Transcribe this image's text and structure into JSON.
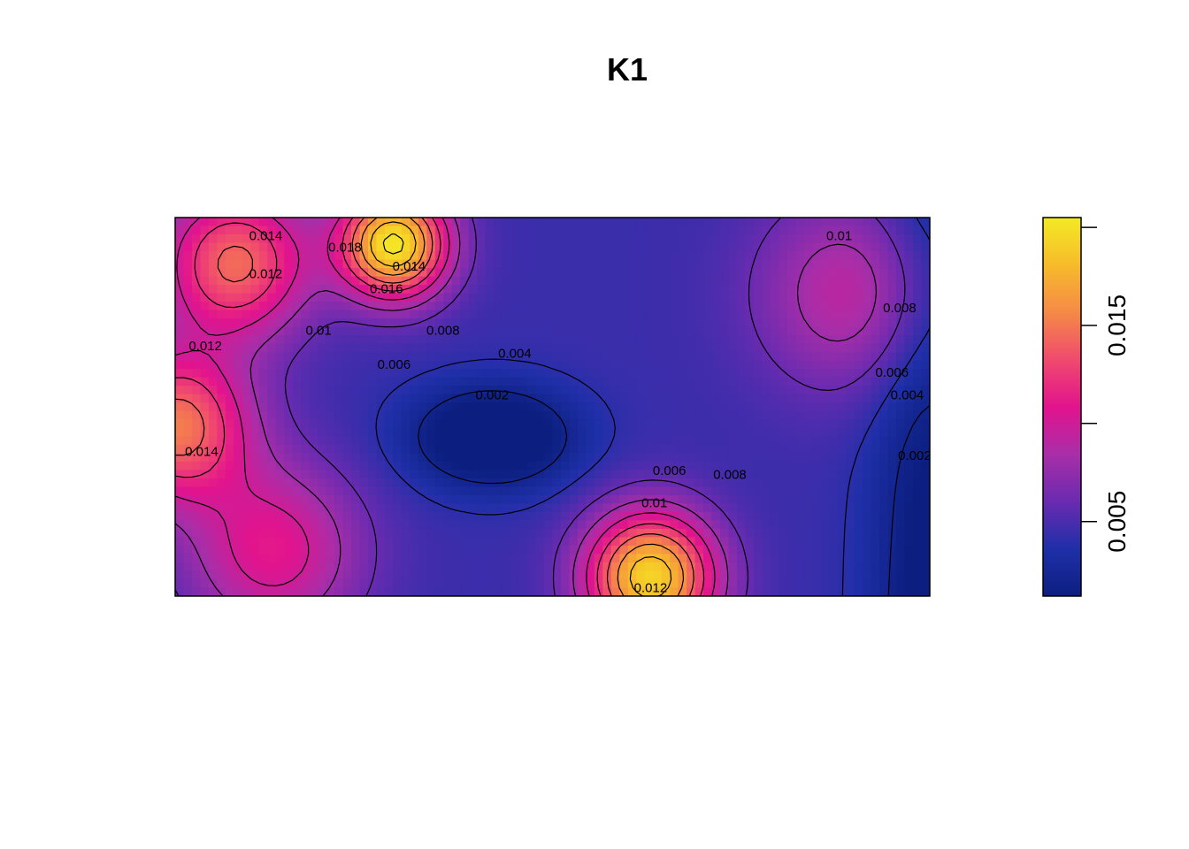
{
  "chart_data": {
    "type": "heatmap",
    "title": "K1",
    "xlabel": "",
    "ylabel": "",
    "grid": false,
    "legend": "right",
    "colorbar": {
      "range": [
        0.0012,
        0.0205
      ],
      "ticks": [
        0.005,
        0.01,
        0.015,
        0.02
      ],
      "tick_labels": [
        "0.005",
        "",
        "0.015",
        ""
      ],
      "colors": [
        "#0c1f80",
        "#1f2fa8",
        "#6a2bb0",
        "#a92ea8",
        "#e2138d",
        "#f04a6e",
        "#f58a47",
        "#f7bb2a",
        "#f3ea24"
      ]
    },
    "field_peaks": [
      {
        "x": 0.29,
        "y": 0.93,
        "value": 0.0205
      },
      {
        "x": 0.63,
        "y": 0.05,
        "value": 0.0195
      },
      {
        "x": 0.0,
        "y": 0.45,
        "value": 0.015
      },
      {
        "x": 0.08,
        "y": 0.88,
        "value": 0.0145
      },
      {
        "x": 0.9,
        "y": 0.8,
        "value": 0.0095
      },
      {
        "x": 0.13,
        "y": 0.12,
        "value": 0.011
      }
    ],
    "field_min": {
      "x": 0.42,
      "y": 0.42,
      "value": 0.0015
    },
    "contour_labels": [
      {
        "text": "0.014",
        "x": 0.12,
        "y": 0.94
      },
      {
        "text": "0.012",
        "x": 0.12,
        "y": 0.84
      },
      {
        "text": "0.018",
        "x": 0.225,
        "y": 0.91
      },
      {
        "text": "0.016",
        "x": 0.28,
        "y": 0.8
      },
      {
        "text": "0.014",
        "x": 0.31,
        "y": 0.86
      },
      {
        "text": "0.01",
        "x": 0.19,
        "y": 0.69
      },
      {
        "text": "0.012",
        "x": 0.04,
        "y": 0.65
      },
      {
        "text": "0.014",
        "x": 0.035,
        "y": 0.37
      },
      {
        "text": "0.008",
        "x": 0.355,
        "y": 0.69
      },
      {
        "text": "0.006",
        "x": 0.29,
        "y": 0.6
      },
      {
        "text": "0.004",
        "x": 0.45,
        "y": 0.63
      },
      {
        "text": "0.002",
        "x": 0.42,
        "y": 0.52
      },
      {
        "text": "0.006",
        "x": 0.655,
        "y": 0.32
      },
      {
        "text": "0.008",
        "x": 0.735,
        "y": 0.31
      },
      {
        "text": "0.01",
        "x": 0.635,
        "y": 0.235
      },
      {
        "text": "0.012",
        "x": 0.63,
        "y": 0.01
      },
      {
        "text": "0.008",
        "x": 0.96,
        "y": 0.75
      },
      {
        "text": "0.006",
        "x": 0.95,
        "y": 0.58
      },
      {
        "text": "0.004",
        "x": 0.97,
        "y": 0.52
      },
      {
        "text": "0.002",
        "x": 0.98,
        "y": 0.36
      },
      {
        "text": "0.01",
        "x": 0.88,
        "y": 0.94
      }
    ]
  }
}
